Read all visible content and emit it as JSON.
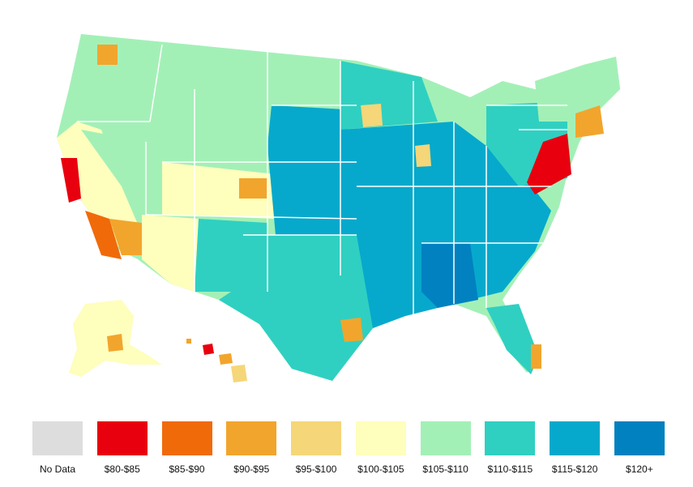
{
  "colors": {
    "no_data": "#dddddd",
    "80_85": "#e8000f",
    "85_90": "#f06a0a",
    "90_95": "#f2a52c",
    "95_100": "#f5d679",
    "100_105": "#fefebd",
    "105_110": "#a3f0b7",
    "110_115": "#2fd0c1",
    "115_120": "#06a9cc",
    "120_plus": "#0181c0",
    "state_border": "#ffffff"
  },
  "legend": [
    {
      "label": "No Data",
      "color": "#dddddd"
    },
    {
      "label": "$80-$85",
      "color": "#e8000f"
    },
    {
      "label": "$85-$90",
      "color": "#f06a0a"
    },
    {
      "label": "$90-$95",
      "color": "#f2a52c"
    },
    {
      "label": "$95-$100",
      "color": "#f5d679"
    },
    {
      "label": "$100-$105",
      "color": "#fefebd"
    },
    {
      "label": "$105-$110",
      "color": "#a3f0b7"
    },
    {
      "label": "$110-$115",
      "color": "#2fd0c1"
    },
    {
      "label": "$115-$120",
      "color": "#06a9cc"
    },
    {
      "label": "$120+",
      "color": "#0181c0"
    }
  ]
}
